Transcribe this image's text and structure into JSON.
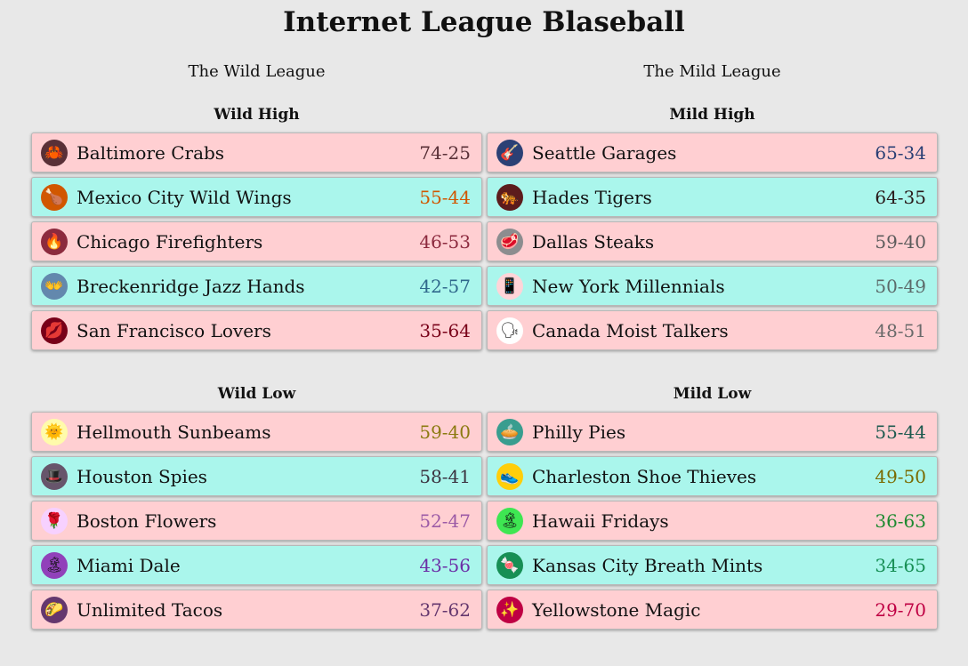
{
  "title": "Internet League Blaseball",
  "leagues": [
    {
      "name": "The Wild League",
      "divisions": [
        {
          "name": "Wild High",
          "teams": [
            {
              "name": "Baltimore Crabs",
              "record": "74-25",
              "icon": "crab-icon",
              "glyph": "🦀",
              "icon_bg": "#593037",
              "record_color": "#593037",
              "row_color": "pink"
            },
            {
              "name": "Mexico City Wild Wings",
              "record": "55-44",
              "icon": "chicken-leg-icon",
              "glyph": "🍗",
              "icon_bg": "#d15700",
              "record_color": "#d15700",
              "row_color": "cyan"
            },
            {
              "name": "Chicago Firefighters",
              "record": "46-53",
              "icon": "fire-icon",
              "glyph": "🔥",
              "icon_bg": "#8c2a3e",
              "record_color": "#8c2a3e",
              "row_color": "pink"
            },
            {
              "name": "Breckenridge Jazz Hands",
              "record": "42-57",
              "icon": "jazz-hands-icon",
              "glyph": "👐",
              "icon_bg": "#6388ad",
              "record_color": "#30688c",
              "row_color": "cyan"
            },
            {
              "name": "San Francisco Lovers",
              "record": "35-64",
              "icon": "lips-icon",
              "glyph": "💋",
              "icon_bg": "#780018",
              "record_color": "#780018",
              "row_color": "pink"
            }
          ]
        },
        {
          "name": "Wild Low",
          "teams": [
            {
              "name": "Hellmouth Sunbeams",
              "record": "59-40",
              "icon": "sun-icon",
              "glyph": "🌞",
              "icon_bg": "#fffbab",
              "record_color": "#8b7a10",
              "row_color": "pink"
            },
            {
              "name": "Houston Spies",
              "record": "58-41",
              "icon": "spy-hat-icon",
              "glyph": "🎩",
              "icon_bg": "#67556b",
              "record_color": "#3b3340",
              "row_color": "cyan"
            },
            {
              "name": "Boston Flowers",
              "record": "52-47",
              "icon": "rose-icon",
              "glyph": "🌹",
              "icon_bg": "#f7d1ff",
              "record_color": "#9c5ba6",
              "row_color": "pink"
            },
            {
              "name": "Miami Dale",
              "record": "43-56",
              "icon": "beach-icon",
              "glyph": "🏝",
              "icon_bg": "#9141ba",
              "record_color": "#6b2da6",
              "row_color": "cyan"
            },
            {
              "name": "Unlimited Tacos",
              "record": "37-62",
              "icon": "taco-icon",
              "glyph": "🌮",
              "icon_bg": "#64376e",
              "record_color": "#64376e",
              "row_color": "pink"
            }
          ]
        }
      ]
    },
    {
      "name": "The Mild League",
      "divisions": [
        {
          "name": "Mild High",
          "teams": [
            {
              "name": "Seattle Garages",
              "record": "65-34",
              "icon": "guitar-icon",
              "glyph": "🎸",
              "icon_bg": "#2b4075",
              "record_color": "#2b4075",
              "row_color": "pink"
            },
            {
              "name": "Hades Tigers",
              "record": "64-35",
              "icon": "tiger-icon",
              "glyph": "🐅",
              "icon_bg": "#5c1c1c",
              "record_color": "#2a1a1a",
              "row_color": "cyan"
            },
            {
              "name": "Dallas Steaks",
              "record": "59-40",
              "icon": "steak-icon",
              "glyph": "🥩",
              "icon_bg": "#8c8d8f",
              "record_color": "#5c5c5c",
              "row_color": "pink"
            },
            {
              "name": "New York Millennials",
              "record": "50-49",
              "icon": "phone-icon",
              "glyph": "📱",
              "icon_bg": "#ffd4d8",
              "record_color": "#5c6a6a",
              "row_color": "cyan"
            },
            {
              "name": "Canada Moist Talkers",
              "record": "48-51",
              "icon": "talking-head-icon",
              "glyph": "🗣",
              "icon_bg": "#ffffff",
              "record_color": "#6a6a6a",
              "row_color": "pink"
            }
          ]
        },
        {
          "name": "Mild Low",
          "teams": [
            {
              "name": "Philly Pies",
              "record": "55-44",
              "icon": "pie-icon",
              "glyph": "🥧",
              "icon_bg": "#399d8f",
              "record_color": "#1d5a4f",
              "row_color": "pink"
            },
            {
              "name": "Charleston Shoe Thieves",
              "record": "49-50",
              "icon": "shoe-icon",
              "glyph": "👟",
              "icon_bg": "#ffce0a",
              "record_color": "#7a6a00",
              "row_color": "cyan"
            },
            {
              "name": "Hawaii Fridays",
              "record": "36-63",
              "icon": "island-icon",
              "glyph": "🏝",
              "icon_bg": "#3ee652",
              "record_color": "#1e8a30",
              "row_color": "pink"
            },
            {
              "name": "Kansas City Breath Mints",
              "record": "34-65",
              "icon": "mint-icon",
              "glyph": "🍬",
              "icon_bg": "#178f55",
              "record_color": "#178f55",
              "row_color": "cyan"
            },
            {
              "name": "Yellowstone Magic",
              "record": "29-70",
              "icon": "sparkles-icon",
              "glyph": "✨",
              "icon_bg": "#bf0043",
              "record_color": "#bf0043",
              "row_color": "pink"
            }
          ]
        }
      ]
    }
  ]
}
